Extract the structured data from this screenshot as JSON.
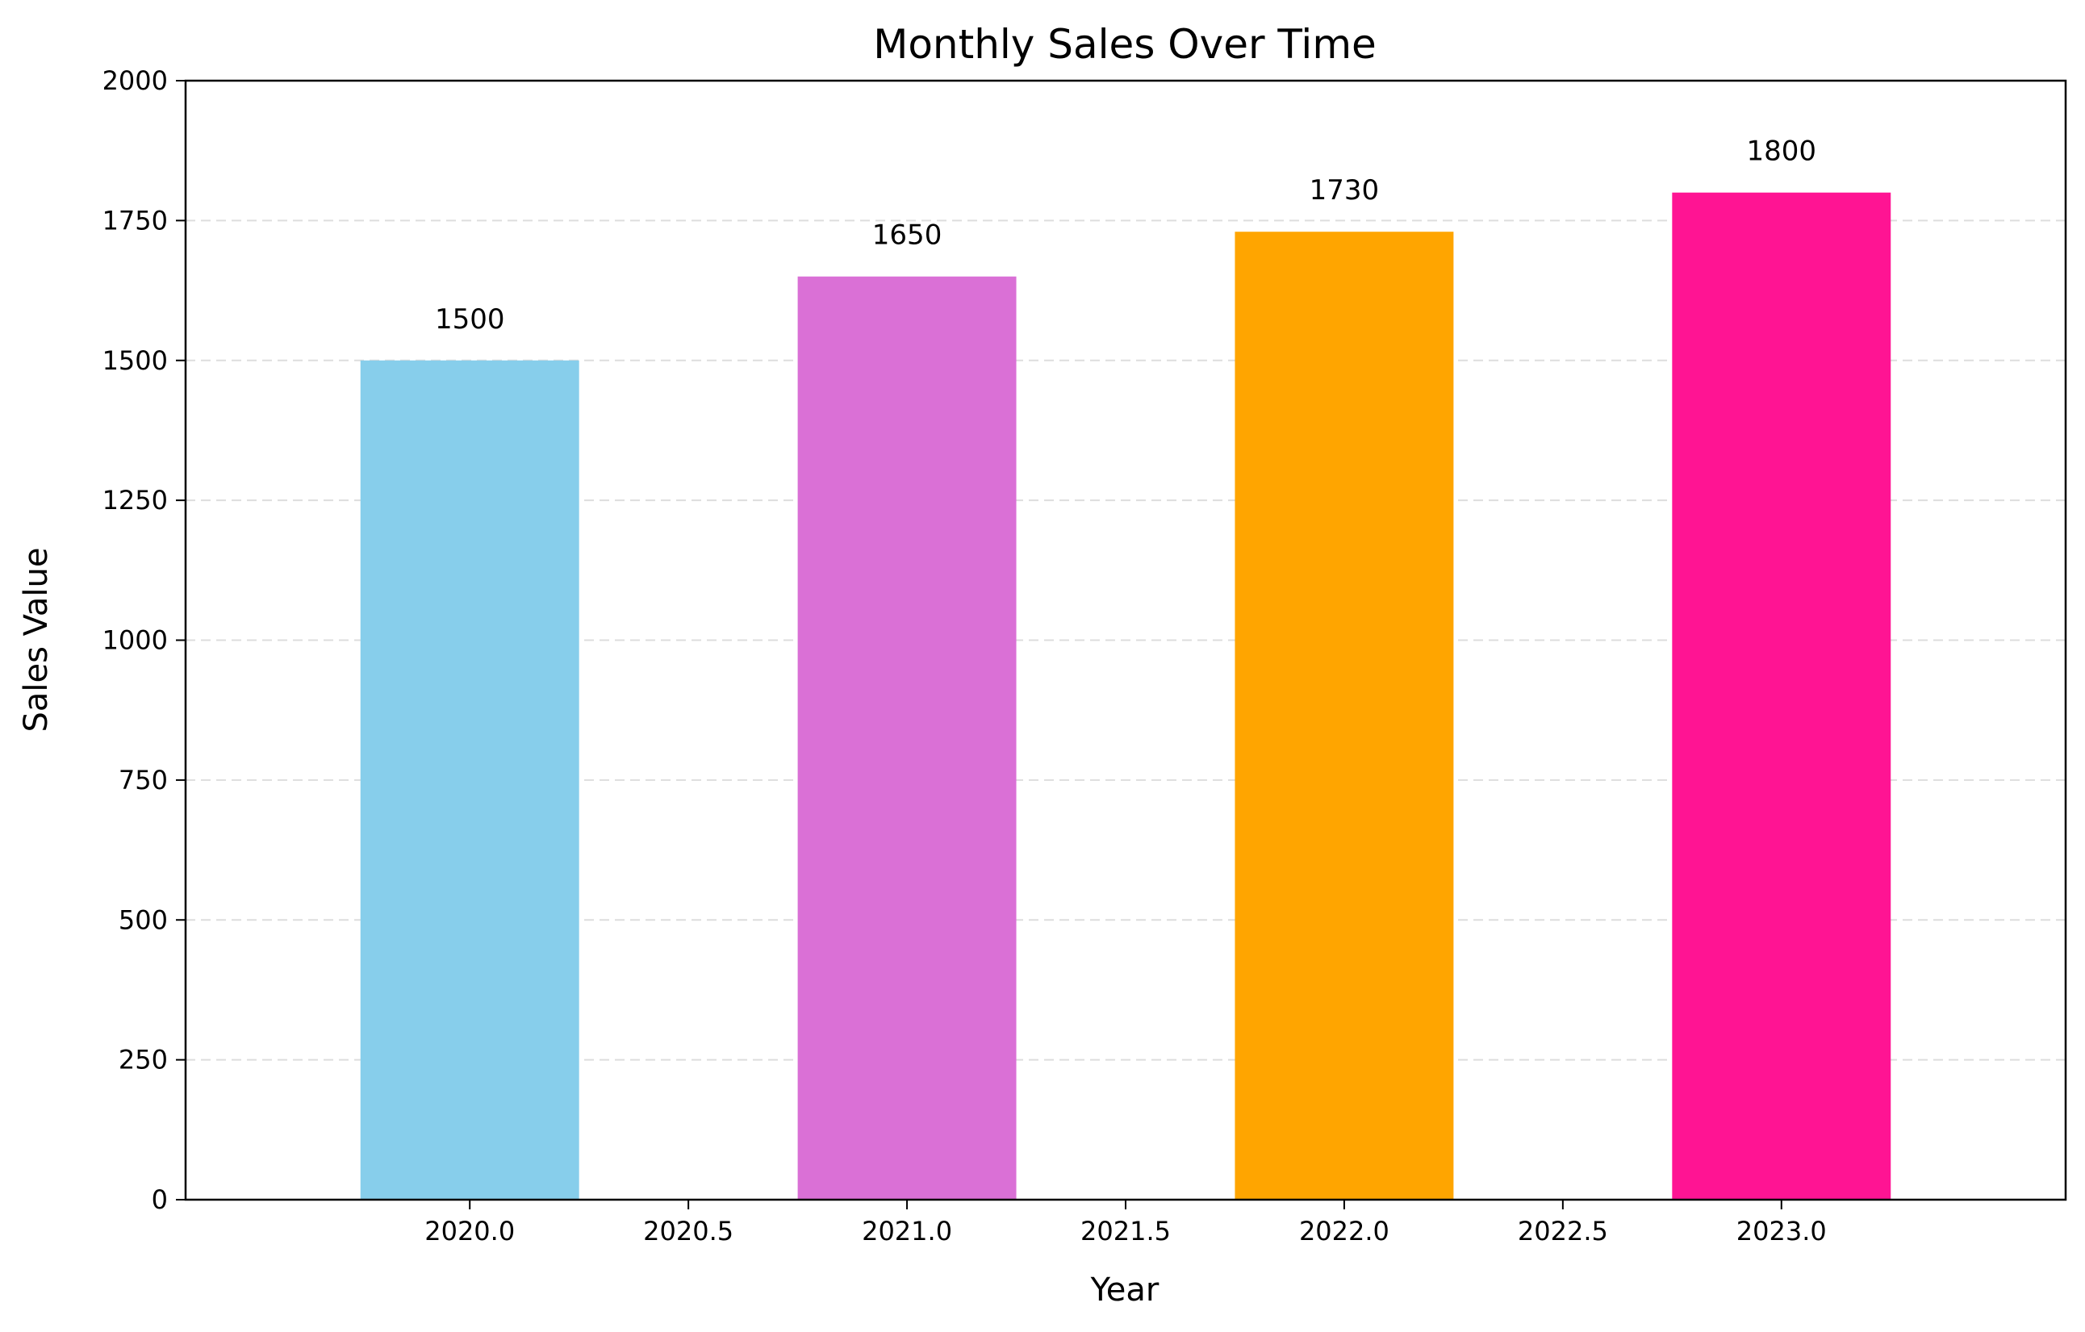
{
  "chart_data": {
    "type": "bar",
    "title": "Monthly Sales Over Time",
    "xlabel": "Year",
    "ylabel": "Sales Value",
    "x": [
      2020,
      2021,
      2022,
      2023
    ],
    "values": [
      1500,
      1650,
      1730,
      1800
    ],
    "data_labels": [
      "1500",
      "1650",
      "1730",
      "1800"
    ],
    "bar_colors": [
      "#87CEEB",
      "#DA70D6",
      "#FFA500",
      "#FF1493"
    ],
    "bar_width": 0.5,
    "xlim": [
      2019.35,
      2023.65
    ],
    "ylim": [
      0,
      2000
    ],
    "xticks": [
      2020.0,
      2020.5,
      2021.0,
      2021.5,
      2022.0,
      2022.5,
      2023.0
    ],
    "xtick_labels": [
      "2020.0",
      "2020.5",
      "2021.0",
      "2021.5",
      "2022.0",
      "2022.5",
      "2023.0"
    ],
    "yticks": [
      0,
      250,
      500,
      750,
      1000,
      1250,
      1500,
      1750,
      2000
    ],
    "ytick_labels": [
      "0",
      "250",
      "500",
      "750",
      "1000",
      "1250",
      "1500",
      "1750",
      "2000"
    ],
    "grid": {
      "axis": "y",
      "style": "dashed",
      "color": "#dddddd"
    }
  }
}
